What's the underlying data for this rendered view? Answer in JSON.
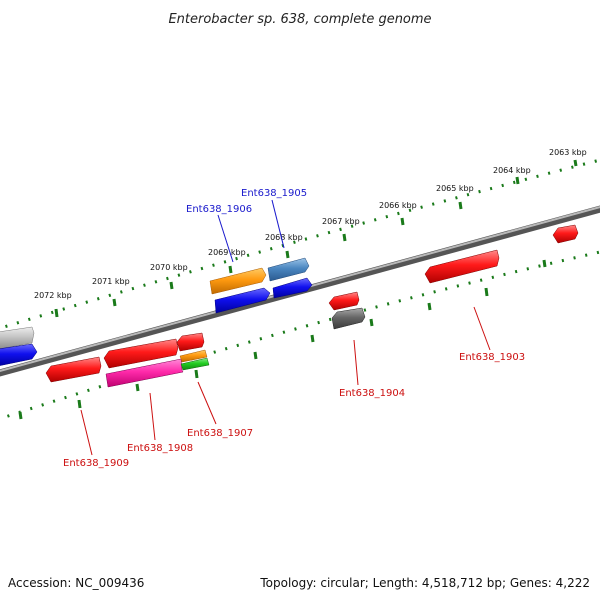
{
  "title": "Enterobacter sp. 638, complete genome",
  "footer": {
    "accession": "Accession: NC_009436",
    "topology": "Topology: circular; Length: 4,518,712 bp; Genes: 4,222"
  },
  "colors": {
    "forward_label": "#1a1acc",
    "reverse_label": "#cc1010",
    "tick": "#1a7a1a",
    "backbone": "#808080"
  },
  "ticks": [
    "2063 kbp",
    "2064 kbp",
    "2065 kbp",
    "2066 kbp",
    "2067 kbp",
    "2068 kbp",
    "2069 kbp",
    "2070 kbp",
    "2071 kbp",
    "2072 kbp"
  ],
  "genes": [
    {
      "label": "Ent638_1905",
      "strand": "forward"
    },
    {
      "label": "Ent638_1906",
      "strand": "forward"
    },
    {
      "label": "Ent638_1903",
      "strand": "reverse"
    },
    {
      "label": "Ent638_1904",
      "strand": "reverse"
    },
    {
      "label": "Ent638_1907",
      "strand": "reverse"
    },
    {
      "label": "Ent638_1908",
      "strand": "reverse"
    },
    {
      "label": "Ent638_1909",
      "strand": "reverse"
    }
  ]
}
